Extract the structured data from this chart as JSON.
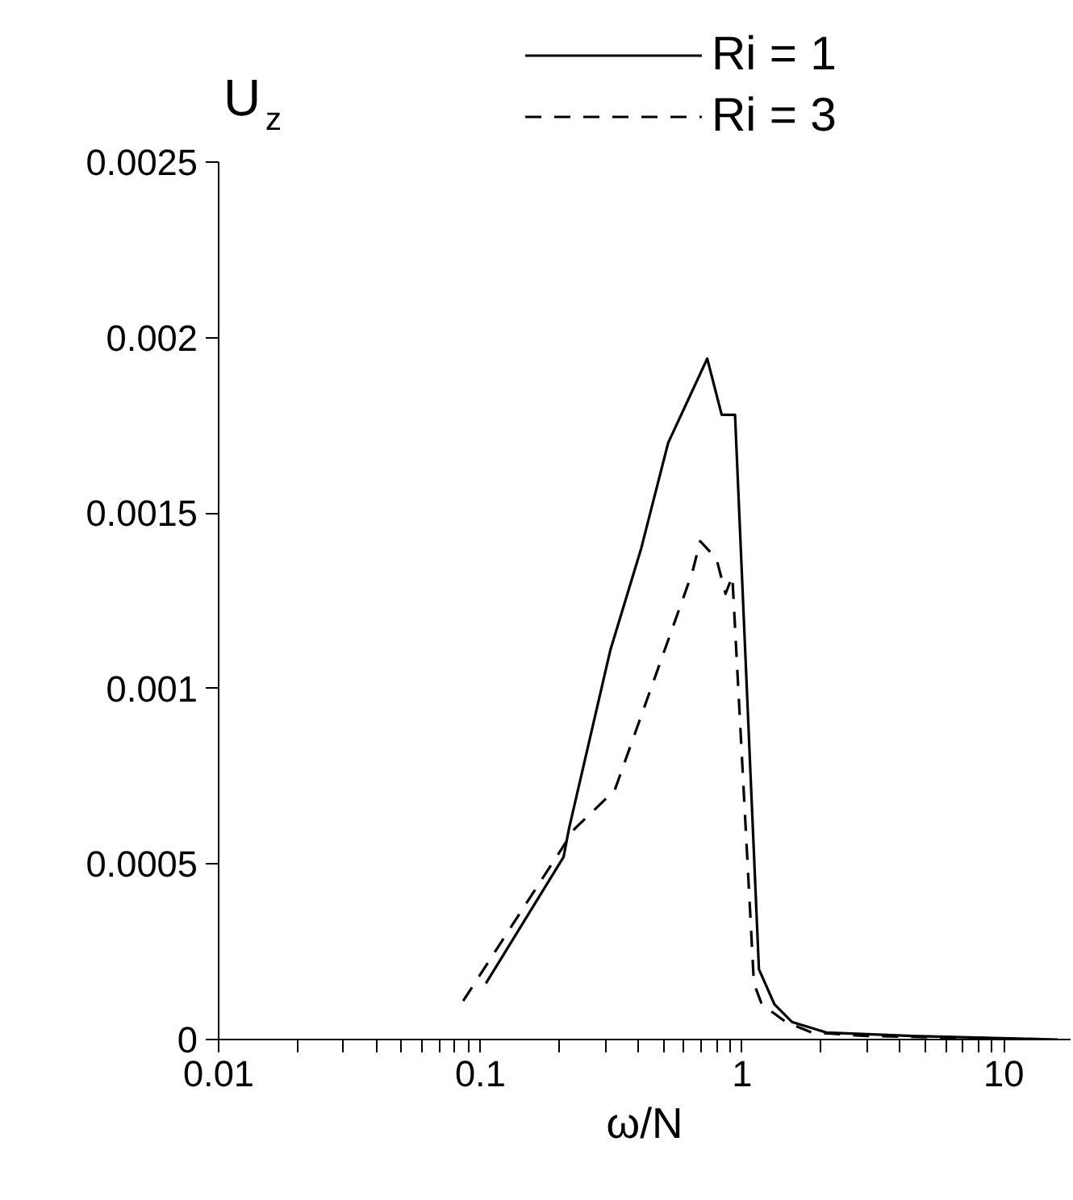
{
  "chart_data": {
    "type": "line",
    "xlabel": "ω/N",
    "ylabel": "U$_{z}$",
    "log": "x",
    "xlim": [
      0.01,
      18
    ],
    "ylim": [
      0,
      0.0025
    ],
    "xticks": [
      0.01,
      {
        "value": 0.02,
        "label": null
      },
      {
        "value": 0.03,
        "label": null
      },
      {
        "value": 0.04,
        "label": null
      },
      {
        "value": 0.05,
        "label": null
      },
      {
        "value": 0.06,
        "label": null
      },
      {
        "value": 0.07,
        "label": null
      },
      {
        "value": 0.08,
        "label": null
      },
      {
        "value": 0.09,
        "label": null
      },
      0.1,
      {
        "value": 0.2,
        "label": null
      },
      {
        "value": 0.3,
        "label": null
      },
      {
        "value": 0.4,
        "label": null
      },
      {
        "value": 0.5,
        "label": null
      },
      {
        "value": 0.6,
        "label": null
      },
      {
        "value": 0.7,
        "label": null
      },
      {
        "value": 0.8,
        "label": null
      },
      {
        "value": 0.9,
        "label": null
      },
      1,
      {
        "value": 2,
        "label": null
      },
      {
        "value": 3,
        "label": null
      },
      {
        "value": 4,
        "label": null
      },
      {
        "value": 5,
        "label": null
      },
      {
        "value": 6,
        "label": null
      },
      {
        "value": 7,
        "label": null
      },
      {
        "value": 8,
        "label": null
      },
      {
        "value": 9,
        "label": null
      },
      10
    ],
    "yticks": [
      0,
      0.0005,
      0.001,
      0.0015,
      0.002,
      0.0025
    ],
    "grid": false,
    "legend": "top right",
    "series": [
      {
        "name": "Ri = 1",
        "color": "#000000",
        "line_style": "solid",
        "x": [
          0.105,
          0.208,
          0.218,
          0.314,
          0.412,
          0.522,
          0.736,
          0.836,
          0.94,
          1.16,
          1.33,
          1.55,
          2.1,
          4.5,
          16
        ],
        "values": [
          0.00016,
          0.00052,
          0.0006,
          0.00111,
          0.0014,
          0.0017,
          0.00194,
          0.00178,
          0.00178,
          0.0002,
          0.0001,
          5e-05,
          2e-05,
          1e-05,
          0
        ]
      },
      {
        "name": "Ri = 3",
        "color": "#000000",
        "line_style": "dashed",
        "x": [
          0.086,
          0.229,
          0.326,
          0.645,
          0.692,
          0.798,
          0.865,
          0.918,
          1.11,
          1.19,
          1.47,
          1.85,
          3,
          16
        ],
        "values": [
          0.00011,
          0.0006,
          0.00071,
          0.00133,
          0.00142,
          0.00137,
          0.00127,
          0.00132,
          0.00016,
          0.0001,
          5e-05,
          2e-05,
          1e-05,
          0
        ]
      }
    ]
  }
}
